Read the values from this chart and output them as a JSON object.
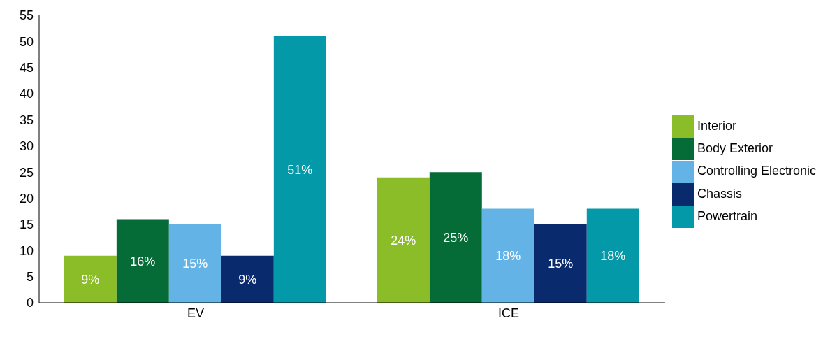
{
  "chart_data": {
    "type": "bar",
    "categories": [
      "EV",
      "ICE"
    ],
    "series": [
      {
        "name": "Interior",
        "color": "#8bbd28",
        "values": [
          9,
          24
        ],
        "value_labels": [
          "9%",
          "24%"
        ]
      },
      {
        "name": "Body Exterior",
        "color": "#056b37",
        "values": [
          16,
          25
        ],
        "value_labels": [
          "16%",
          "25%"
        ]
      },
      {
        "name": "Controlling Electronic",
        "color": "#63b3e6",
        "values": [
          15,
          18
        ],
        "value_labels": [
          "15%",
          "18%"
        ]
      },
      {
        "name": "Chassis",
        "color": "#0a2a6e",
        "values": [
          9,
          15
        ],
        "value_labels": [
          "9%",
          "15%"
        ]
      },
      {
        "name": "Powertrain",
        "color": "#0499a8",
        "values": [
          51,
          18
        ],
        "value_labels": [
          "51%",
          "18%"
        ]
      }
    ],
    "ylim": [
      0,
      55
    ],
    "yticks": [
      0,
      5,
      10,
      15,
      20,
      25,
      30,
      35,
      40,
      45,
      50,
      55
    ],
    "grid": false,
    "legend": "right"
  }
}
